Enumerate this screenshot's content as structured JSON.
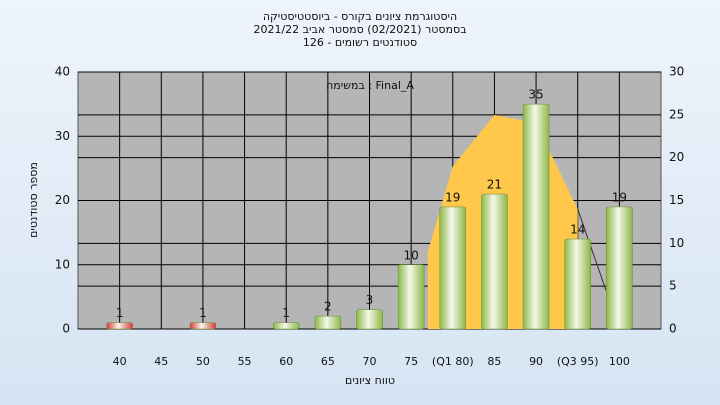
{
  "chart_data": {
    "type": "bar",
    "title": [
      "היסטוגרמת ציונים בקורס - ביוסטטיסטיקה",
      "בסמסטר  (02/2021)  סמסטר אביב  2021/22",
      "סטודנטים רשומים - 126"
    ],
    "annotation": "במשימה : Final_A",
    "x_label": "טווח ציונים",
    "y_label": "מספר סטודנטים",
    "xlim": [
      35,
      105
    ],
    "xticks": [
      40,
      45,
      50,
      55,
      60,
      65,
      70,
      75,
      {
        "value": 80,
        "label": "(Q1 80)"
      },
      85,
      90,
      {
        "value": 95,
        "label": "(Q3 95)"
      },
      100
    ],
    "ylim": [
      0,
      40
    ],
    "yticks": [
      0,
      10,
      20,
      30,
      40
    ],
    "y2lim": [
      0,
      30
    ],
    "y2ticks": [
      0,
      5,
      10,
      15,
      20,
      25,
      30
    ],
    "grid": true,
    "series": [
      {
        "type": "area",
        "axis": "y2",
        "color": "#ffc84a",
        "x": [
          77,
          80,
          85,
          90,
          95
        ],
        "values": [
          9,
          19,
          25,
          24,
          14
        ]
      },
      {
        "type": "line",
        "axis": "y2",
        "color": "#333333",
        "x": [
          95,
          98.4
        ],
        "values": [
          14,
          4.5
        ]
      },
      {
        "type": "bar",
        "x": [
          40,
          50,
          60,
          65,
          70,
          75,
          80,
          85,
          90,
          95,
          100
        ],
        "values": [
          1,
          1,
          1,
          2,
          3,
          10,
          19,
          21,
          35,
          14,
          19
        ],
        "colors": [
          "#d83a3a",
          "#d83a3a",
          "#8db84a",
          "#8db84a",
          "#8db84a",
          "#8db84a",
          "#8db84a",
          "#8db84a",
          "#8db84a",
          "#8db84a",
          "#8db84a"
        ]
      }
    ]
  }
}
